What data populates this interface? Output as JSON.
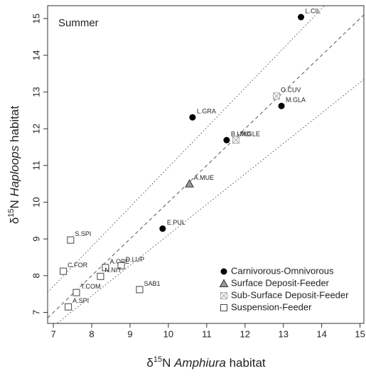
{
  "chart_data": {
    "type": "scatter",
    "title": "Summer",
    "x_label": {
      "prefix": "δ",
      "sup": "15",
      "unit": "N",
      "taxon": "Amphiura",
      "suffix": "habitat"
    },
    "y_label": {
      "prefix": "δ",
      "sup": "15",
      "unit": "N",
      "taxon": "Haploops",
      "suffix": "habitat"
    },
    "xlim": [
      6.85,
      15.1
    ],
    "ylim": [
      6.7,
      15.35
    ],
    "xticks": [
      7,
      8,
      9,
      10,
      11,
      12,
      13,
      14,
      15
    ],
    "yticks": [
      7,
      8,
      9,
      10,
      11,
      12,
      13,
      14,
      15
    ],
    "legend": "bottom-right",
    "reference_lines": [
      {
        "style": "dashed",
        "slope": 1,
        "intercept": 0
      },
      {
        "style": "dotted",
        "slope": 1.08,
        "intercept": 0.15
      },
      {
        "style": "dotted",
        "slope": 0.83,
        "intercept": 0.81
      }
    ],
    "series": [
      {
        "name": "Carnivorous-Omnivorous",
        "marker": "filled-circle",
        "color": "#000000",
        "x": [
          13.46,
          10.63,
          11.52,
          12.95,
          9.85
        ],
        "values": [
          15.04,
          12.31,
          11.69,
          12.62,
          9.28
        ],
        "labels": [
          "L.CIL",
          "L.GRA",
          "B.UND",
          "M.GLA",
          "E.PUL"
        ]
      },
      {
        "name": "Surface Deposit-Feeder",
        "marker": "triangle",
        "color": "#999999",
        "x": [
          10.55
        ],
        "values": [
          10.5
        ],
        "labels": [
          "A.MUE"
        ]
      },
      {
        "name": "Sub-Surface Deposit-Feeder",
        "marker": "crossed-square",
        "color": "#aaaaaa",
        "x": [
          12.82,
          11.76
        ],
        "values": [
          12.89,
          11.69
        ],
        "labels": [
          "O.CUV",
          "M.GLE"
        ]
      },
      {
        "name": "Suspension-Feeder",
        "marker": "open-square",
        "color": "#444444",
        "x": [
          7.45,
          7.26,
          8.36,
          8.77,
          8.23,
          7.6,
          7.39,
          9.25
        ],
        "values": [
          8.97,
          8.12,
          8.22,
          8.27,
          7.98,
          7.54,
          7.15,
          7.62
        ],
        "labels": [
          "S.SPI",
          "C.FOR",
          "A.OPE",
          "D.LUP",
          "N.NIT",
          "T.COM",
          "A.SPI",
          "SAB1"
        ]
      }
    ]
  }
}
